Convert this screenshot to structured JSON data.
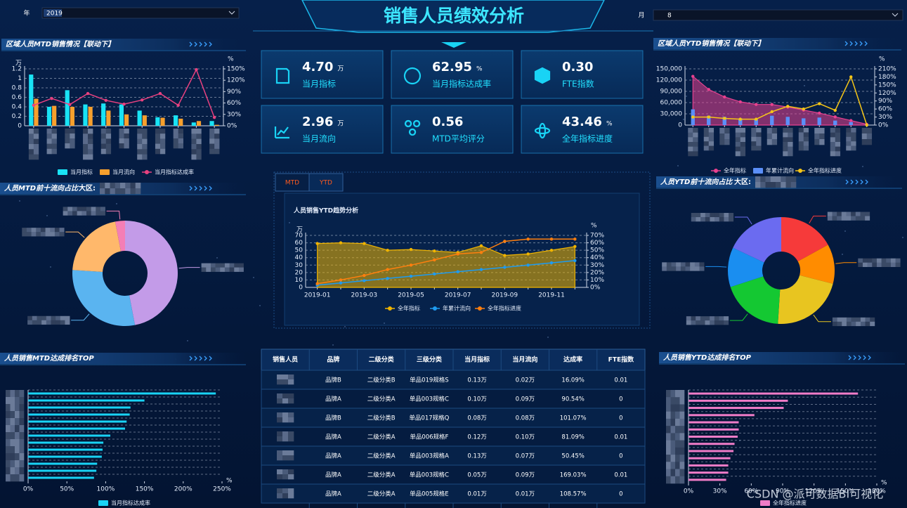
{
  "header": {
    "year_label": "年",
    "year": "2019",
    "month_label": "月",
    "month": "8",
    "title": "销售人员绩效分析"
  },
  "kpis": [
    {
      "value": "4.70",
      "unit": "万",
      "label": "当月指标"
    },
    {
      "value": "62.95",
      "unit": "%",
      "label": "当月指标达成率"
    },
    {
      "value": "0.30",
      "label": "FTE指数"
    },
    {
      "value": "2.96",
      "unit": "万",
      "label": "当月流向"
    },
    {
      "value": "0.56",
      "label": "MTD平均评分"
    },
    {
      "value": "43.46",
      "unit": "%",
      "label": "全年指标进度"
    }
  ],
  "chart_data": [
    {
      "type": "bar",
      "title": "区域人员MTD销售情况【联动下】",
      "categories": [
        null,
        null,
        null,
        null,
        null,
        null,
        null,
        null,
        null,
        null,
        null
      ],
      "series": [
        {
          "name": "当月指标",
          "color": "#19e3f5",
          "mark": "bar",
          "values": [
            1.08,
            0.4,
            0.75,
            0.45,
            0.47,
            0.45,
            0.32,
            0.18,
            0.22,
            0.07,
            0.1
          ]
        },
        {
          "name": "当月流向",
          "color": "#f7a02d",
          "mark": "bar",
          "values": [
            0.57,
            0.42,
            0.4,
            0.4,
            0.32,
            0.24,
            0.22,
            0.17,
            0.15,
            0.1,
            0.02
          ]
        },
        {
          "name": "当月指标达成率",
          "color": "#e8417f",
          "mark": "line",
          "axis": "y2",
          "values": [
            54,
            72,
            56,
            85,
            67,
            57,
            68,
            85,
            54,
            148,
            22
          ]
        }
      ],
      "y_unit": "万",
      "y2_unit": "%",
      "ylim": [
        0,
        1.2
      ],
      "yticks": [
        0,
        0.2,
        0.4,
        0.6,
        0.8,
        1,
        1.2
      ],
      "y2lim": [
        0,
        150
      ],
      "y2ticks": [
        {
          "value": 0,
          "label": "0%"
        },
        {
          "value": 30,
          "label": "30%"
        },
        {
          "value": 60,
          "label": "60%"
        },
        {
          "value": 90,
          "label": "90%"
        },
        {
          "value": 120,
          "label": "120%"
        },
        {
          "value": 150,
          "label": "150%"
        }
      ],
      "grid": true
    },
    {
      "type": "bar",
      "title": "区域人员YTD销售情况【联动下】",
      "categories": [
        null,
        null,
        null,
        null,
        null,
        null,
        null,
        null,
        null,
        null,
        null,
        null
      ],
      "series": [
        {
          "name": "全年指标",
          "color": "#e8418f",
          "mark": "area",
          "values": [
            130000,
            95000,
            75000,
            62000,
            55000,
            55000,
            48000,
            40000,
            32000,
            22000,
            12000,
            2000
          ]
        },
        {
          "name": "年累计流向",
          "color": "#5b8ff9",
          "mark": "bar",
          "values": [
            42000,
            25000,
            22000,
            18000,
            15000,
            25000,
            22000,
            18000,
            20000,
            12000,
            8000,
            2000
          ]
        },
        {
          "name": "全年指标进度",
          "color": "#f5c518",
          "mark": "line",
          "axis": "y2",
          "values": [
            30,
            30,
            25,
            22,
            22,
            50,
            70,
            60,
            80,
            55,
            180,
            0
          ]
        }
      ],
      "y2_unit": "%",
      "ylim": [
        0,
        150000
      ],
      "yticks": [
        0,
        {
          "value": 30000,
          "label": "30,000"
        },
        {
          "value": 60000,
          "label": "60,000"
        },
        {
          "value": 90000,
          "label": "90,000"
        },
        {
          "value": 120000,
          "label": "120,000"
        },
        {
          "value": 150000,
          "label": "150,000"
        }
      ],
      "y2lim": [
        0,
        210
      ],
      "y2ticks": [
        {
          "value": 0,
          "label": "0%"
        },
        {
          "value": 30,
          "label": "30%"
        },
        {
          "value": 60,
          "label": "60%"
        },
        {
          "value": 90,
          "label": "90%"
        },
        {
          "value": 120,
          "label": "120%"
        },
        {
          "value": 150,
          "label": "150%"
        },
        {
          "value": 180,
          "label": "180%"
        },
        {
          "value": 210,
          "label": "210%"
        }
      ],
      "grid": true
    },
    {
      "type": "pie",
      "title": "人员MTD前十流向占比",
      "subtitle": "大区:",
      "categories": [
        null,
        null,
        null,
        null
      ],
      "values": [
        47,
        29,
        21,
        3
      ],
      "colors": [
        "#c39be8",
        "#5ab4f0",
        "#ffb86b",
        "#f47eb5"
      ],
      "donut": true
    },
    {
      "type": "pie",
      "title": "人员YTD前十流向占比",
      "subtitle": "大区:",
      "categories": [
        null,
        null,
        null,
        null,
        null,
        null
      ],
      "values": [
        17,
        12,
        22,
        19,
        12,
        18
      ],
      "colors": [
        "#f63a3a",
        "#ff8c00",
        "#e8c520",
        "#14c832",
        "#1a8ef0",
        "#6b6bf0"
      ],
      "donut": true
    },
    {
      "type": "line",
      "title": "人员销售YTD趋势分析",
      "tabs": [
        "MTD",
        "YTD"
      ],
      "categories": [
        "2019-01",
        null,
        "2019-03",
        null,
        "2019-05",
        null,
        "2019-07",
        null,
        "2019-09",
        null,
        "2019-11",
        null
      ],
      "series": [
        {
          "name": "全年指标",
          "color": "#f0b400",
          "mark": "area",
          "values": [
            59,
            60,
            59,
            50,
            51,
            49,
            47,
            56,
            43,
            45,
            50,
            55
          ]
        },
        {
          "name": "年累计流向",
          "color": "#1e9bf0",
          "mark": "line",
          "values": [
            3,
            6,
            9,
            12,
            15,
            18,
            21,
            24,
            27,
            30,
            33,
            36
          ]
        },
        {
          "name": "全年指标进度",
          "color": "#ff7f0e",
          "mark": "line",
          "axis": "y2",
          "values": [
            5,
            10,
            16,
            24,
            30,
            37,
            45,
            47,
            62,
            65,
            65,
            65
          ]
        }
      ],
      "y_unit": "万",
      "y2_unit": "%",
      "ylim": [
        0,
        70
      ],
      "yticks": [
        0,
        10,
        20,
        30,
        40,
        50,
        60,
        70
      ],
      "y2lim": [
        0,
        70
      ],
      "y2ticks": [
        {
          "value": 0,
          "label": "0%"
        },
        {
          "value": 10,
          "label": "10%"
        },
        {
          "value": 20,
          "label": "20%"
        },
        {
          "value": 30,
          "label": "30%"
        },
        {
          "value": 40,
          "label": "40%"
        },
        {
          "value": 50,
          "label": "50%"
        },
        {
          "value": 60,
          "label": "60%"
        },
        {
          "value": 70,
          "label": "70%"
        }
      ],
      "grid": true
    },
    {
      "type": "bar",
      "orientation": "horizontal",
      "title": "人员销售MTD达成排名TOP",
      "categories": [
        null,
        null,
        null,
        null,
        null,
        null,
        null,
        null,
        null,
        null,
        null,
        null,
        null
      ],
      "series": [
        {
          "name": "当月指标达成率",
          "color": "#19d3f5",
          "values": [
            242,
            150,
            132,
            131,
            127,
            125,
            106,
            97,
            96,
            95,
            89,
            88,
            85
          ]
        }
      ],
      "x_unit": "%",
      "xlim": [
        0,
        250
      ],
      "xticks": [
        {
          "value": 0,
          "label": "0%"
        },
        {
          "value": 50,
          "label": "50%"
        },
        {
          "value": 100,
          "label": "100%"
        },
        {
          "value": 150,
          "label": "150%"
        },
        {
          "value": 200,
          "label": "200%"
        },
        {
          "value": 250,
          "label": "250%"
        }
      ],
      "grid": true
    },
    {
      "type": "bar",
      "orientation": "horizontal",
      "title": "人员销售YTD达成排名TOP",
      "categories": [
        null,
        null,
        null,
        null,
        null,
        null,
        null,
        null,
        null,
        null,
        null,
        null,
        null
      ],
      "series": [
        {
          "name": "全年指标进度",
          "color": "#f07cc8",
          "values": [
            162,
            95,
            91,
            63,
            48,
            48,
            47,
            44,
            43,
            40,
            38,
            38,
            36
          ]
        }
      ],
      "x_unit": "%",
      "xlim": [
        0,
        180
      ],
      "xticks": [
        {
          "value": 0,
          "label": "0%"
        },
        {
          "value": 30,
          "label": "30%"
        },
        {
          "value": 60,
          "label": "60%"
        },
        {
          "value": 90,
          "label": "90%"
        },
        {
          "value": 120,
          "label": "120%"
        },
        {
          "value": 150,
          "label": "150%"
        },
        {
          "value": 180,
          "label": "180%"
        }
      ],
      "grid": true
    }
  ],
  "table": {
    "columns": [
      "销售人员",
      "品牌",
      "二级分类",
      "三级分类",
      "当月指标",
      "当月流向",
      "达成率",
      "FTE指数"
    ],
    "rows": [
      [
        null,
        "品牌B",
        "二级分类B",
        "单品019规格S",
        "0.13万",
        "0.02万",
        "16.09%",
        "0.01"
      ],
      [
        null,
        "品牌A",
        "二级分类A",
        "单品003规格C",
        "0.10万",
        "0.09万",
        "90.54%",
        "0"
      ],
      [
        null,
        "品牌B",
        "二级分类B",
        "单品017规格Q",
        "0.08万",
        "0.08万",
        "101.07%",
        "0"
      ],
      [
        null,
        "品牌A",
        "二级分类A",
        "单品006规格F",
        "0.12万",
        "0.10万",
        "81.09%",
        "0.01"
      ],
      [
        null,
        "品牌A",
        "二级分类A",
        "单品003规格A",
        "0.13万",
        "0.07万",
        "50.45%",
        "0"
      ],
      [
        null,
        "品牌A",
        "二级分类A",
        "单品003规格C",
        "0.05万",
        "0.09万",
        "169.03%",
        "0.01"
      ],
      [
        null,
        "品牌A",
        "二级分类A",
        "单品005规格E",
        "0.01万",
        "0.01万",
        "108.57%",
        "0"
      ]
    ]
  },
  "watermark": "CSDN @派可数据BI可视化"
}
